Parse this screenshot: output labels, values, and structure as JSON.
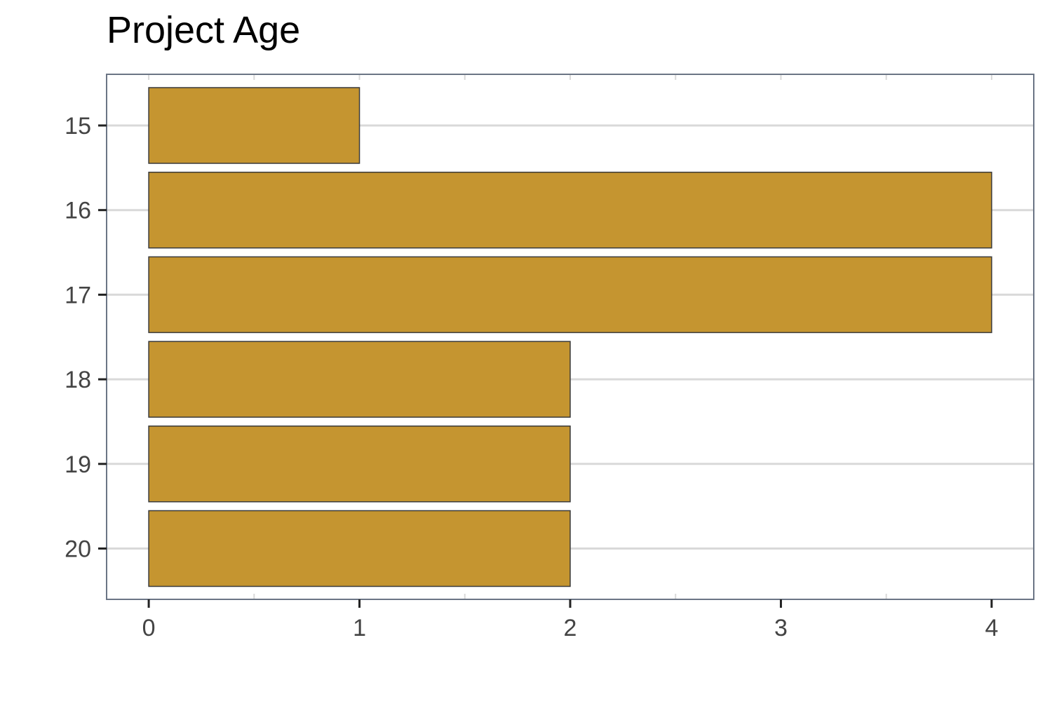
{
  "chart_data": {
    "type": "bar",
    "orientation": "horizontal",
    "title": "Project Age",
    "xlabel": "",
    "ylabel": "",
    "categories": [
      "15",
      "16",
      "17",
      "18",
      "19",
      "20"
    ],
    "values": [
      1,
      4,
      4,
      2,
      2,
      2
    ],
    "xlim": [
      -0.2,
      4.2
    ],
    "xticks": [
      "0",
      "1",
      "2",
      "3",
      "4"
    ],
    "grid": true,
    "legend": "none",
    "colors": {
      "bar_fill": "#C4932C",
      "bar_stroke": "#3A3A3A",
      "grid": "#D9D9D9",
      "panel_border": "#6B7585",
      "tick_text": "#444444",
      "tick_mark": "#222222"
    }
  }
}
